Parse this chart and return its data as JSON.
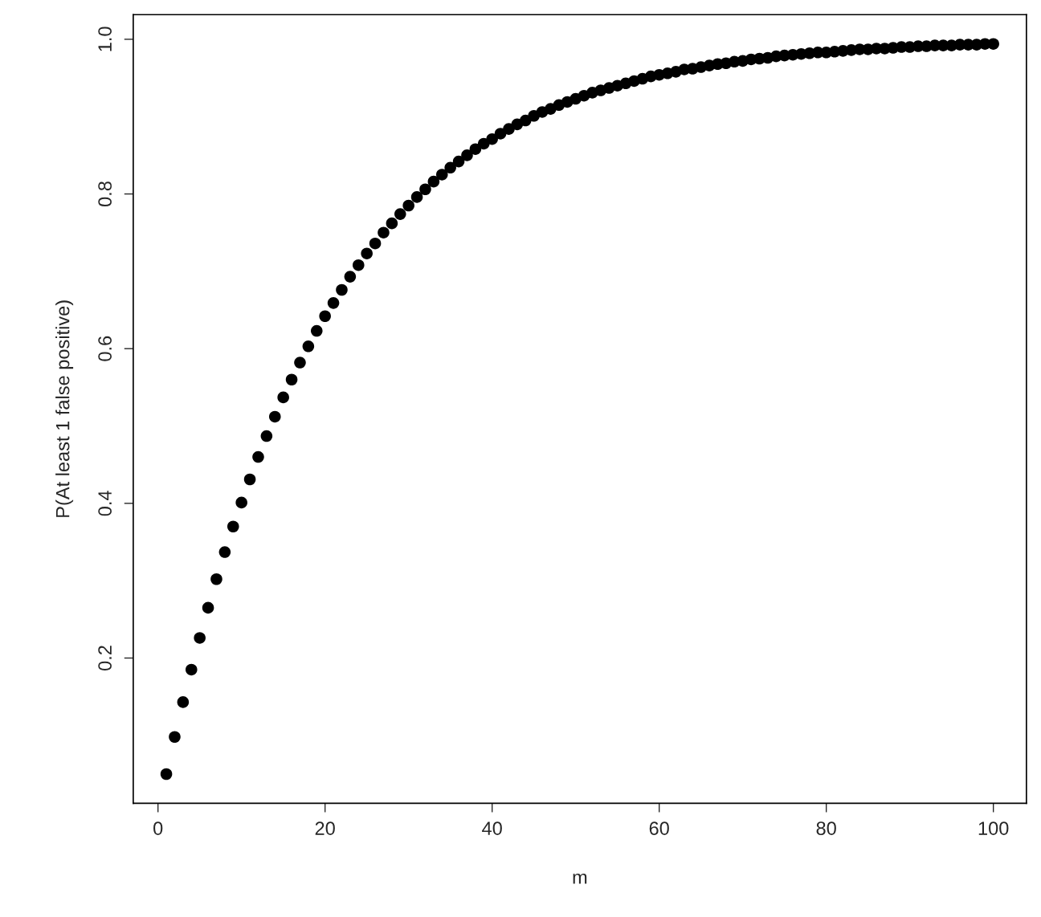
{
  "chart_data": {
    "type": "scatter",
    "xlabel": "m",
    "ylabel": "P(At least 1 false positive)",
    "x": [
      1,
      2,
      3,
      4,
      5,
      6,
      7,
      8,
      9,
      10,
      11,
      12,
      13,
      14,
      15,
      16,
      17,
      18,
      19,
      20,
      21,
      22,
      23,
      24,
      25,
      26,
      27,
      28,
      29,
      30,
      31,
      32,
      33,
      34,
      35,
      36,
      37,
      38,
      39,
      40,
      41,
      42,
      43,
      44,
      45,
      46,
      47,
      48,
      49,
      50,
      51,
      52,
      53,
      54,
      55,
      56,
      57,
      58,
      59,
      60,
      61,
      62,
      63,
      64,
      65,
      66,
      67,
      68,
      69,
      70,
      71,
      72,
      73,
      74,
      75,
      76,
      77,
      78,
      79,
      80,
      81,
      82,
      83,
      84,
      85,
      86,
      87,
      88,
      89,
      90,
      91,
      92,
      93,
      94,
      95,
      96,
      97,
      98,
      99,
      100
    ],
    "series": [
      {
        "color": "#000000",
        "values": [
          0.05,
          0.098,
          0.143,
          0.185,
          0.226,
          0.265,
          0.302,
          0.337,
          0.37,
          0.401,
          0.431,
          0.46,
          0.487,
          0.512,
          0.537,
          0.56,
          0.582,
          0.603,
          0.623,
          0.642,
          0.659,
          0.676,
          0.693,
          0.708,
          0.723,
          0.736,
          0.75,
          0.762,
          0.774,
          0.785,
          0.796,
          0.806,
          0.816,
          0.825,
          0.834,
          0.842,
          0.85,
          0.858,
          0.865,
          0.871,
          0.878,
          0.884,
          0.89,
          0.895,
          0.901,
          0.906,
          0.91,
          0.915,
          0.919,
          0.923,
          0.927,
          0.931,
          0.934,
          0.937,
          0.94,
          0.943,
          0.946,
          0.949,
          0.952,
          0.954,
          0.956,
          0.958,
          0.961,
          0.962,
          0.964,
          0.966,
          0.968,
          0.969,
          0.971,
          0.972,
          0.974,
          0.975,
          0.976,
          0.978,
          0.979,
          0.98,
          0.981,
          0.982,
          0.983,
          0.983,
          0.984,
          0.985,
          0.986,
          0.987,
          0.987,
          0.988,
          0.988,
          0.989,
          0.99,
          0.99,
          0.991,
          0.991,
          0.992,
          0.992,
          0.992,
          0.993,
          0.993,
          0.993,
          0.994,
          0.994
        ]
      }
    ],
    "xlim": [
      -2.96,
      103.96
    ],
    "ylim": [
      0.0122,
      1.0318
    ],
    "xticks": [
      0,
      20,
      40,
      60,
      80,
      100
    ],
    "yticks": [
      {
        "value": 0.2,
        "label": "0.2"
      },
      {
        "value": 0.4,
        "label": "0.4"
      },
      {
        "value": 0.6,
        "label": "0.6"
      },
      {
        "value": 0.8,
        "label": "0.8"
      },
      {
        "value": 1.0,
        "label": "1.0"
      }
    ],
    "grid": false,
    "legend": false,
    "marker": "circle"
  }
}
